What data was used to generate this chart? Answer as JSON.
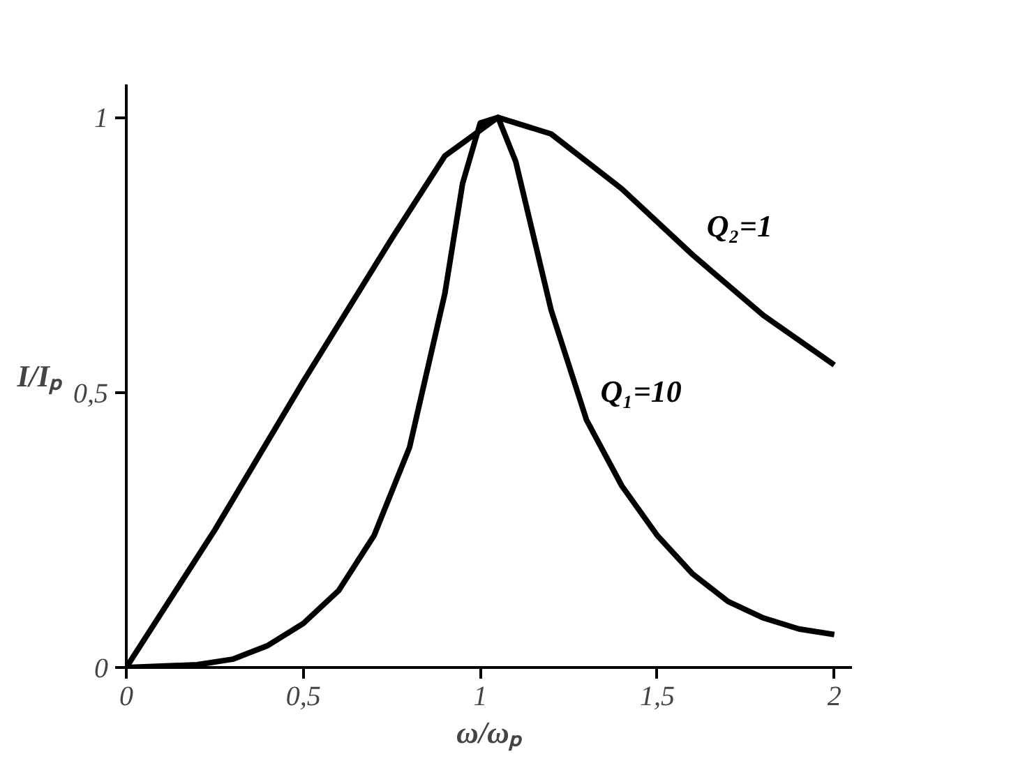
{
  "chart_data": {
    "type": "line",
    "xlabel": "ω/ωₚ",
    "ylabel": "I/Iₚ",
    "xlim": [
      0,
      2.05
    ],
    "ylim": [
      0,
      1.06
    ],
    "xticks": [
      0,
      {
        "value": 0.5,
        "label": "0,5"
      },
      1,
      {
        "value": 1.5,
        "label": "1,5"
      },
      2
    ],
    "yticks": [
      0,
      {
        "value": 0.5,
        "label": "0,5"
      },
      1
    ],
    "grid": false,
    "legend": false,
    "marker": "none",
    "line_style": "solid",
    "series": [
      {
        "name": "Q₂=1",
        "color": "#000000",
        "x": [
          0,
          0.1,
          0.25,
          0.5,
          0.75,
          0.9,
          1.05,
          1.2,
          1.4,
          1.6,
          1.8,
          2.0
        ],
        "values": [
          0,
          0.1,
          0.25,
          0.52,
          0.78,
          0.93,
          1.0,
          0.97,
          0.87,
          0.75,
          0.64,
          0.55
        ]
      },
      {
        "name": "Q₁=10",
        "color": "#000000",
        "x": [
          0,
          0.2,
          0.3,
          0.4,
          0.5,
          0.6,
          0.7,
          0.8,
          0.9,
          0.95,
          1.0,
          1.05,
          1.1,
          1.2,
          1.3,
          1.4,
          1.5,
          1.6,
          1.7,
          1.8,
          1.9,
          2.0
        ],
        "values": [
          0,
          0.005,
          0.015,
          0.04,
          0.08,
          0.14,
          0.24,
          0.4,
          0.68,
          0.88,
          0.99,
          1.0,
          0.92,
          0.65,
          0.45,
          0.33,
          0.24,
          0.17,
          0.12,
          0.09,
          0.07,
          0.06
        ]
      }
    ]
  }
}
